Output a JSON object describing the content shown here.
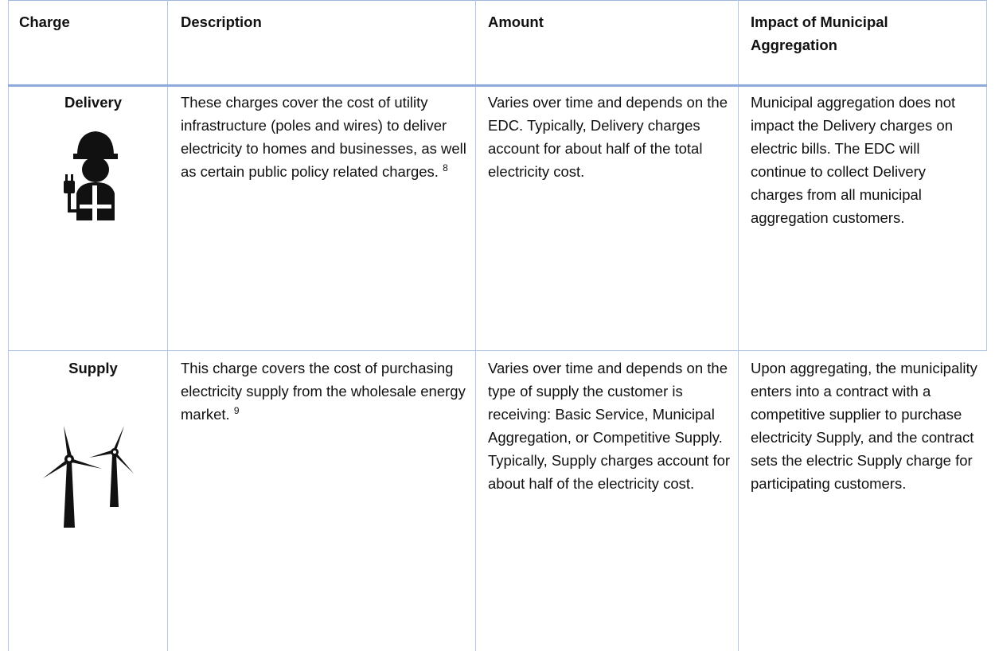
{
  "table": {
    "header": [
      "Charge",
      "Description",
      "Amount",
      "Impact of Municipal Aggregation"
    ],
    "rows": [
      {
        "charge": "Delivery",
        "description": "These charges cover the cost of utility infrastructure (poles and wires) to deliver electricity to homes and businesses, as well as certain public policy related charges.",
        "footnote": "8",
        "amount": "Varies over time and depends on the EDC. Typically, Delivery charges account for about half of the total electricity cost.",
        "impact": "Municipal aggregation does not impact the Delivery charges on electric bills. The EDC will continue to collect Delivery charges from all municipal aggregation customers."
      },
      {
        "charge": "Supply",
        "description": "This charge covers the cost of purchasing electricity supply from the wholesale energy market.",
        "footnote": "9",
        "amount": "Varies over time and depends on the type of supply the customer is receiving: Basic Service, Municipal Aggregation, or Competitive Supply. Typically, Supply charges account for about half of the electricity cost.",
        "impact": "Upon aggregating, the municipality enters into a contract with a competitive supplier to purchase electricity Supply, and the contract sets the electric Supply charge for participating customers."
      }
    ]
  }
}
